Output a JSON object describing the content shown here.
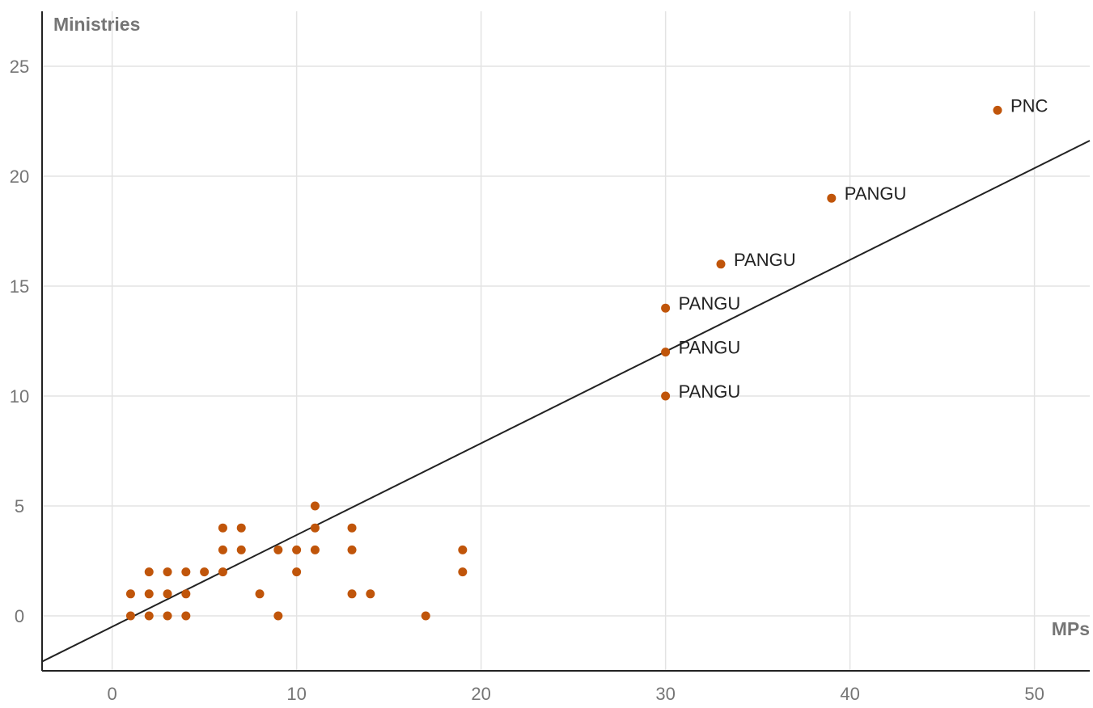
{
  "chart_data": {
    "type": "scatter",
    "title": "",
    "xlabel": "MPs",
    "ylabel": "Ministries",
    "xlim": [
      -3.8,
      53
    ],
    "ylim": [
      -2.5,
      27.5
    ],
    "x_ticks": [
      0,
      10,
      20,
      30,
      40,
      50
    ],
    "y_ticks": [
      0,
      5,
      10,
      15,
      20,
      25
    ],
    "x_tick_labels": [
      "0",
      "10",
      "20",
      "30",
      "40",
      "50"
    ],
    "y_tick_labels": [
      "0",
      "5",
      "10",
      "15",
      "20",
      "25"
    ],
    "grid": true,
    "legend": "none",
    "point_color": "#c0550a",
    "trendline": {
      "slope": 0.4172,
      "intercept": -0.494
    },
    "points": [
      {
        "x": 1,
        "y": 1,
        "label": ""
      },
      {
        "x": 1,
        "y": 0,
        "label": ""
      },
      {
        "x": 2,
        "y": 2,
        "label": ""
      },
      {
        "x": 2,
        "y": 1,
        "label": ""
      },
      {
        "x": 2,
        "y": 0,
        "label": ""
      },
      {
        "x": 3,
        "y": 2,
        "label": ""
      },
      {
        "x": 3,
        "y": 1,
        "label": ""
      },
      {
        "x": 3,
        "y": 0,
        "label": ""
      },
      {
        "x": 4,
        "y": 2,
        "label": ""
      },
      {
        "x": 4,
        "y": 1,
        "label": ""
      },
      {
        "x": 4,
        "y": 0,
        "label": ""
      },
      {
        "x": 5,
        "y": 2,
        "label": ""
      },
      {
        "x": 6,
        "y": 4,
        "label": ""
      },
      {
        "x": 6,
        "y": 3,
        "label": ""
      },
      {
        "x": 6,
        "y": 2,
        "label": ""
      },
      {
        "x": 7,
        "y": 4,
        "label": ""
      },
      {
        "x": 7,
        "y": 3,
        "label": ""
      },
      {
        "x": 8,
        "y": 1,
        "label": ""
      },
      {
        "x": 9,
        "y": 3,
        "label": ""
      },
      {
        "x": 9,
        "y": 0,
        "label": ""
      },
      {
        "x": 10,
        "y": 3,
        "label": ""
      },
      {
        "x": 10,
        "y": 2,
        "label": ""
      },
      {
        "x": 11,
        "y": 5,
        "label": ""
      },
      {
        "x": 11,
        "y": 4,
        "label": ""
      },
      {
        "x": 11,
        "y": 3,
        "label": ""
      },
      {
        "x": 13,
        "y": 4,
        "label": ""
      },
      {
        "x": 13,
        "y": 3,
        "label": ""
      },
      {
        "x": 13,
        "y": 1,
        "label": ""
      },
      {
        "x": 14,
        "y": 1,
        "label": ""
      },
      {
        "x": 17,
        "y": 0,
        "label": ""
      },
      {
        "x": 19,
        "y": 3,
        "label": ""
      },
      {
        "x": 19,
        "y": 2,
        "label": ""
      },
      {
        "x": 30,
        "y": 14,
        "label": "PANGU"
      },
      {
        "x": 30,
        "y": 12,
        "label": "PANGU"
      },
      {
        "x": 30,
        "y": 10,
        "label": "PANGU"
      },
      {
        "x": 33,
        "y": 16,
        "label": "PANGU"
      },
      {
        "x": 39,
        "y": 19,
        "label": "PANGU"
      },
      {
        "x": 48,
        "y": 23,
        "label": "PNC"
      }
    ]
  }
}
